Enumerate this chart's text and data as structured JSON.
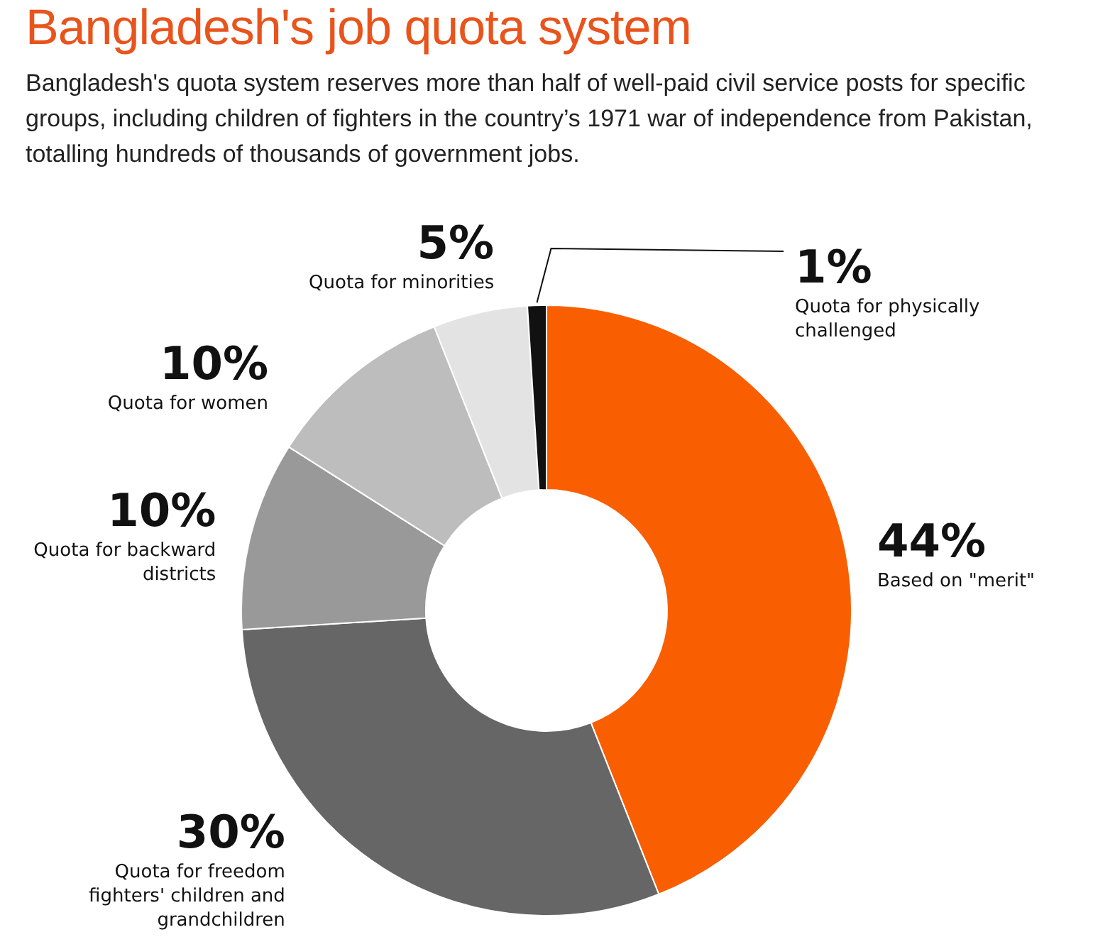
{
  "chart_data": {
    "type": "donut",
    "title": "Bangladesh's job quota system",
    "subtitle": "Bangladesh's quota system reserves more than half of well-paid civil service posts for specific groups, including children of fighters in the country’s 1971 war of independence from Pakistan, totalling hundreds of thousands of government jobs.",
    "categories": [
      "Based on \"merit\"",
      "Quota for freedom fighters' children and grandchildren",
      "Quota for backward districts",
      "Quota for women",
      "Quota for minorities",
      "Quota for physically challenged"
    ],
    "values": [
      44,
      30,
      10,
      10,
      5,
      1
    ],
    "colors": [
      "#f95f00",
      "#666666",
      "#999999",
      "#bdbdbd",
      "#e3e3e3",
      "#111111"
    ],
    "value_labels": [
      "44%",
      "30%",
      "10%",
      "10%",
      "5%",
      "1%"
    ],
    "legend": false
  }
}
